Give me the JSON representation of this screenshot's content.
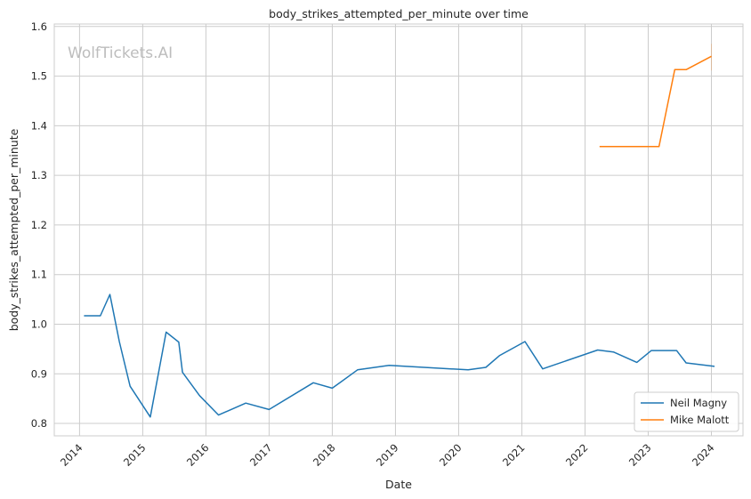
{
  "chart_data": {
    "type": "line",
    "title": "body_strikes_attempted_per_minute over time",
    "xlabel": "Date",
    "ylabel": "body_strikes_attempted_per_minute",
    "watermark": "WolfTickets.AI",
    "xlim": [
      2013.6,
      2024.5
    ],
    "ylim": [
      0.775,
      1.605
    ],
    "x_ticks": [
      2014,
      2015,
      2016,
      2017,
      2018,
      2019,
      2020,
      2021,
      2022,
      2023,
      2024
    ],
    "y_ticks": [
      0.8,
      0.9,
      1.0,
      1.1,
      1.2,
      1.3,
      1.4,
      1.5,
      1.6
    ],
    "grid": true,
    "legend_position": "bottom-right",
    "series": [
      {
        "name": "Neil Magny",
        "color": "#1f77b4",
        "points": [
          [
            2014.07,
            1.017
          ],
          [
            2014.33,
            1.017
          ],
          [
            2014.48,
            1.06
          ],
          [
            2014.63,
            0.965
          ],
          [
            2014.8,
            0.875
          ],
          [
            2015.12,
            0.813
          ],
          [
            2015.37,
            0.984
          ],
          [
            2015.57,
            0.964
          ],
          [
            2015.63,
            0.903
          ],
          [
            2015.9,
            0.856
          ],
          [
            2016.2,
            0.817
          ],
          [
            2016.63,
            0.841
          ],
          [
            2017.0,
            0.828
          ],
          [
            2017.7,
            0.882
          ],
          [
            2018.0,
            0.871
          ],
          [
            2018.4,
            0.908
          ],
          [
            2018.9,
            0.917
          ],
          [
            2020.15,
            0.908
          ],
          [
            2020.43,
            0.913
          ],
          [
            2020.65,
            0.937
          ],
          [
            2021.05,
            0.965
          ],
          [
            2021.33,
            0.91
          ],
          [
            2022.2,
            0.948
          ],
          [
            2022.45,
            0.944
          ],
          [
            2022.82,
            0.923
          ],
          [
            2023.05,
            0.947
          ],
          [
            2023.45,
            0.947
          ],
          [
            2023.6,
            0.922
          ],
          [
            2024.05,
            0.915
          ]
        ]
      },
      {
        "name": "Mike Malott",
        "color": "#ff7f0e",
        "points": [
          [
            2022.23,
            1.358
          ],
          [
            2022.6,
            1.358
          ],
          [
            2023.17,
            1.358
          ],
          [
            2023.42,
            1.513
          ],
          [
            2023.6,
            1.513
          ],
          [
            2024.0,
            1.54
          ]
        ]
      }
    ]
  }
}
